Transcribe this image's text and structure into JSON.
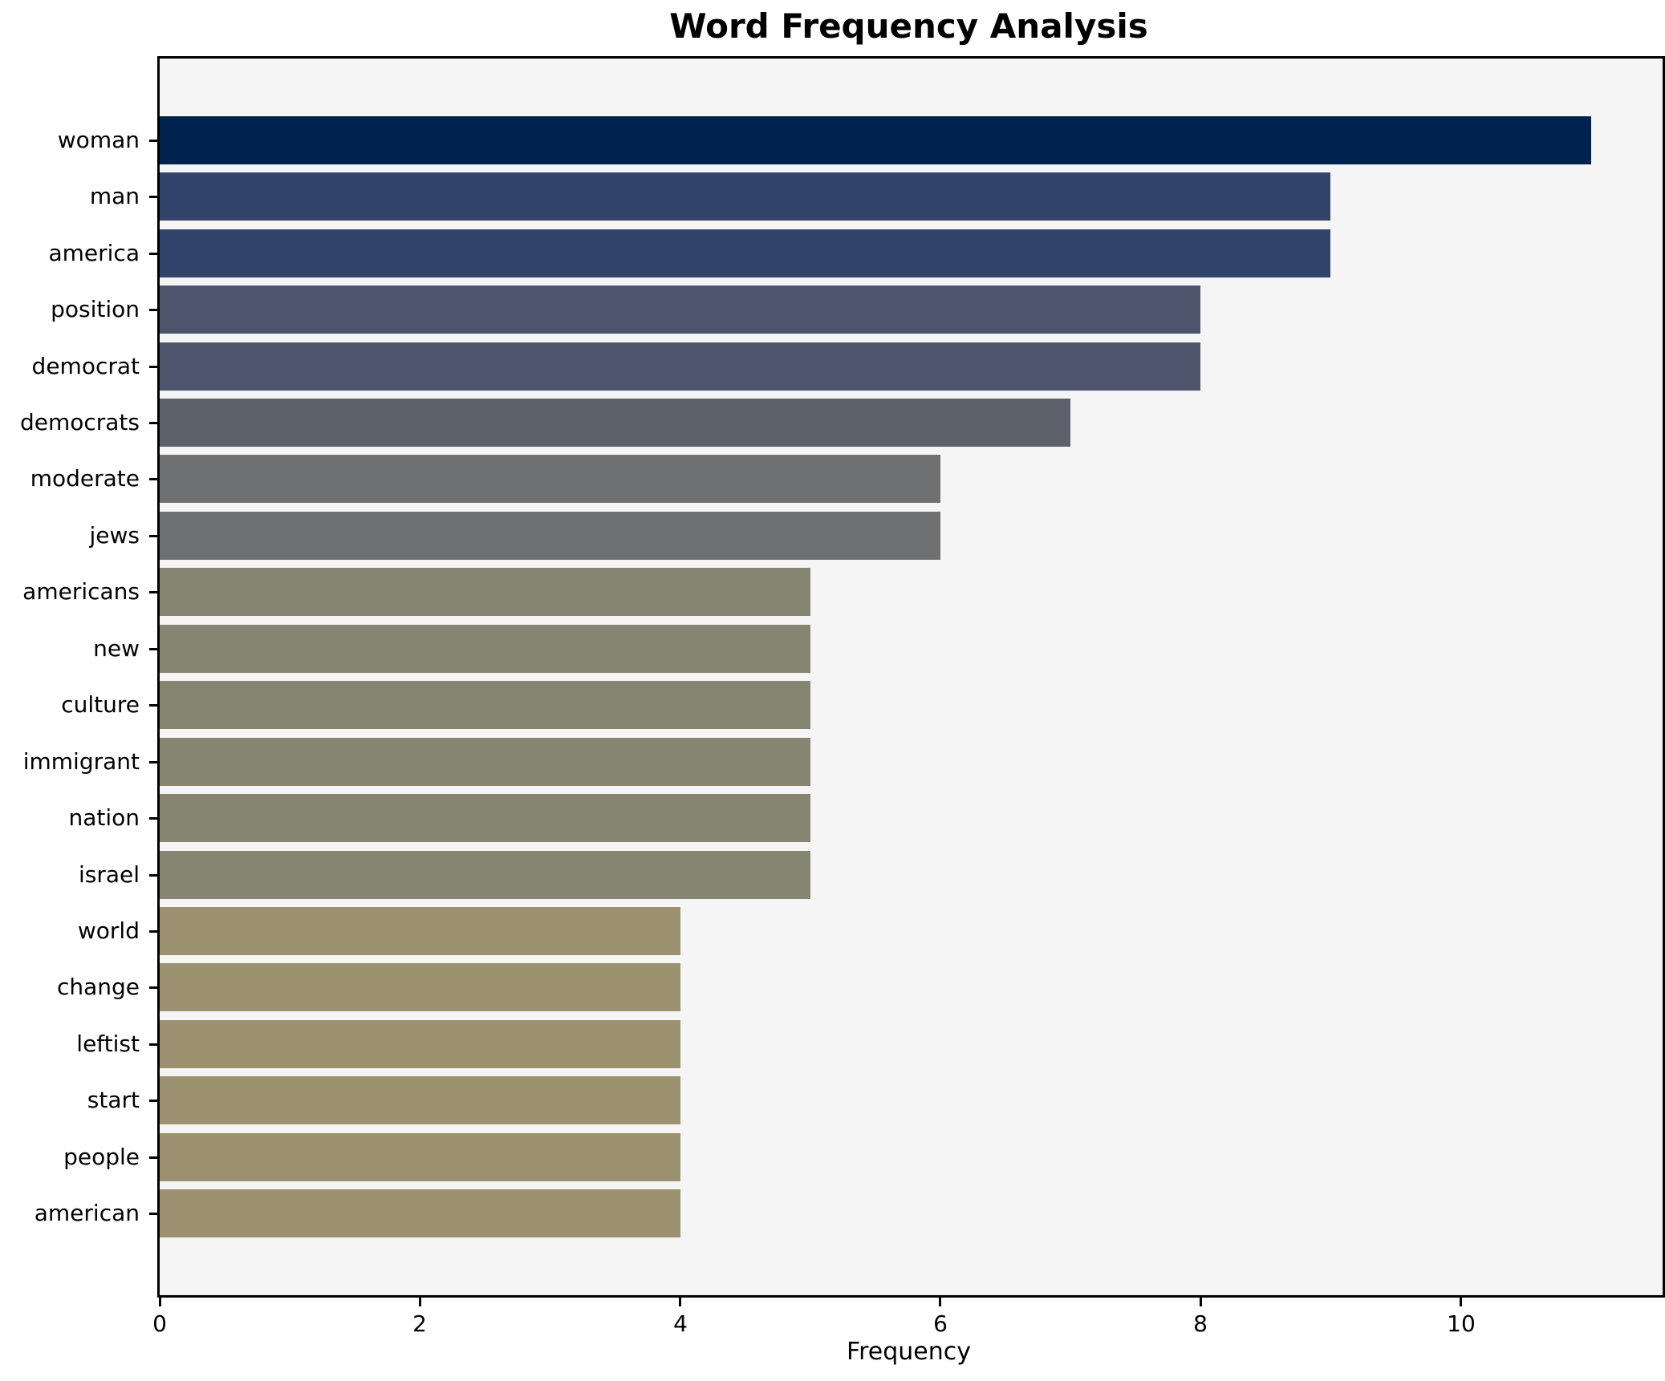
{
  "chart_data": {
    "type": "bar",
    "orientation": "horizontal",
    "title": "Word Frequency Analysis",
    "xlabel": "Frequency",
    "ylabel": "",
    "categories": [
      "woman",
      "man",
      "america",
      "position",
      "democrat",
      "democrats",
      "moderate",
      "jews",
      "americans",
      "new",
      "culture",
      "immigrant",
      "nation",
      "israel",
      "world",
      "change",
      "leftist",
      "start",
      "people",
      "american"
    ],
    "values": [
      11,
      9,
      9,
      8,
      8,
      7,
      6,
      6,
      5,
      5,
      5,
      5,
      5,
      5,
      4,
      4,
      4,
      4,
      4,
      4
    ],
    "xlim": [
      0,
      11.55
    ],
    "xticks": [
      0,
      2,
      4,
      6,
      8,
      10
    ],
    "grid": false,
    "legend": null,
    "value_colors": {
      "11": "#00224e",
      "9": "#324469",
      "8": "#4c556c",
      "7": "#5d616c",
      "6": "#6f7072",
      "5": "#868572",
      "4": "#9c9270"
    },
    "axes_background": "#f5f5f6",
    "figure_background": "#ffffff",
    "spine_color": "#000000"
  }
}
